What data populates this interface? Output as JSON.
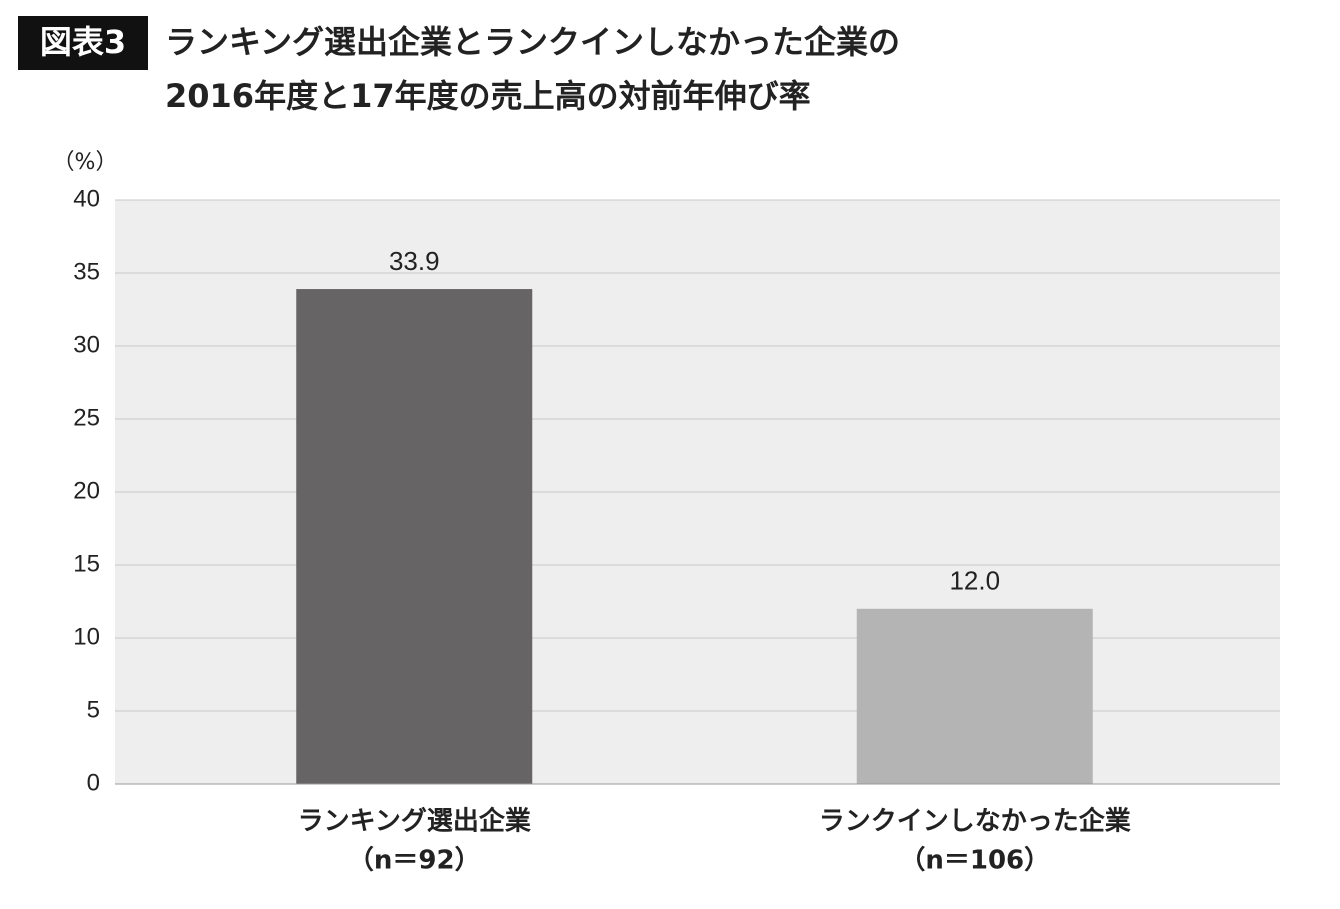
{
  "chart_data": {
    "type": "bar",
    "badge": "図表3",
    "title_lines": [
      "ランキング選出企業とランクインしなかった企業の",
      "2016年度と17年度の売上高の対前年伸び率"
    ],
    "y_unit": "（%）",
    "categories": [
      "ランキング選出企業",
      "ランクインしなかった企業"
    ],
    "category_notes": [
      "（n＝92）",
      "（n＝106）"
    ],
    "values": [
      33.9,
      12.0
    ],
    "value_labels": [
      "33.9",
      "12.0"
    ],
    "colors": [
      "#666465",
      "#b4b4b4"
    ],
    "ylim": [
      0,
      40
    ],
    "yticks": [
      0,
      5,
      10,
      15,
      20,
      25,
      30,
      35,
      40
    ],
    "grid": true
  }
}
